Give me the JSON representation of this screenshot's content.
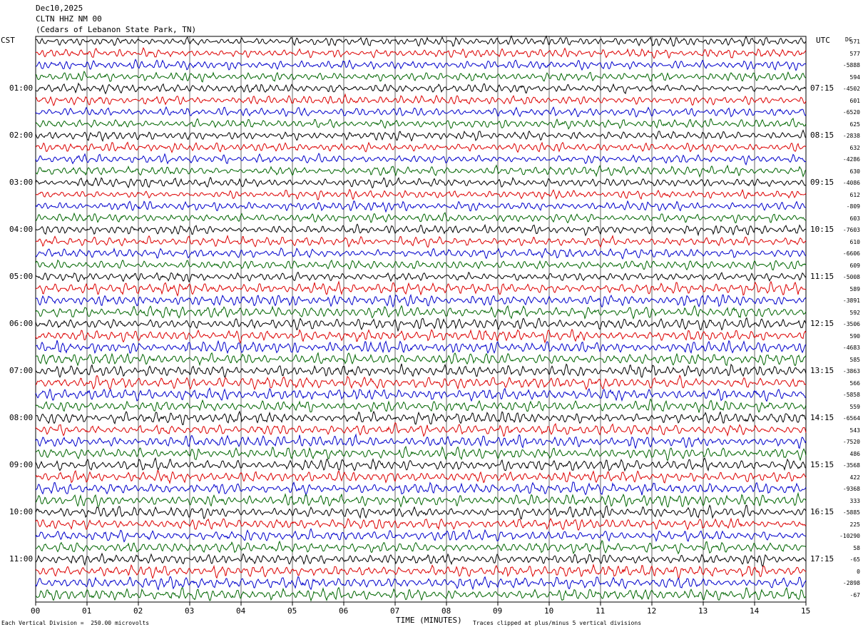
{
  "header": {
    "date": "Dec10,2025",
    "station": "CLTN HHZ NM 00",
    "location": "(Cedars of Lebanon State Park, TN)"
  },
  "left_timezone": "CST",
  "right_timezone": "UTC",
  "dc_label": "DC",
  "chart_data": {
    "type": "helicorder",
    "xlabel": "TIME (MINUTES)",
    "x_ticks": [
      "00",
      "01",
      "02",
      "03",
      "04",
      "05",
      "06",
      "07",
      "08",
      "09",
      "10",
      "11",
      "12",
      "13",
      "14",
      "15"
    ],
    "xlim": [
      0,
      15
    ],
    "rows": 48,
    "row_colors": [
      "#000000",
      "#dd0000",
      "#0000cc",
      "#006600"
    ],
    "left_hour_labels": [
      "01:00",
      "02:00",
      "03:00",
      "04:00",
      "05:00",
      "06:00",
      "07:00",
      "08:00",
      "09:00",
      "10:00",
      "11:00"
    ],
    "right_hour_labels": [
      "07:15",
      "08:15",
      "09:15",
      "10:15",
      "11:15",
      "12:15",
      "13:15",
      "14:15",
      "15:15",
      "16:15",
      "17:15"
    ],
    "dc_offsets": [
      "571",
      "577",
      "-5888",
      "594",
      "-4502",
      "601",
      "-6520",
      "625",
      "-2838",
      "632",
      "-4286",
      "630",
      "-4086",
      "612",
      "-809",
      "603",
      "-7603",
      "610",
      "-6606",
      "609",
      "-5008",
      "589",
      "-3891",
      "592",
      "-3506",
      "590",
      "-4683",
      "585",
      "-3863",
      "566",
      "-5858",
      "559",
      "-6564",
      "543",
      "-7520",
      "486",
      "-3568",
      "422",
      "-9368",
      "333",
      "-5885",
      "225",
      "-10290",
      "58",
      "-65",
      "0",
      "-2898",
      "-67"
    ],
    "scale_note": "Each Vertical Division =  250.00 microvolts",
    "clip_note": "Traces clipped at plus/minus 5 vertical divisions"
  }
}
